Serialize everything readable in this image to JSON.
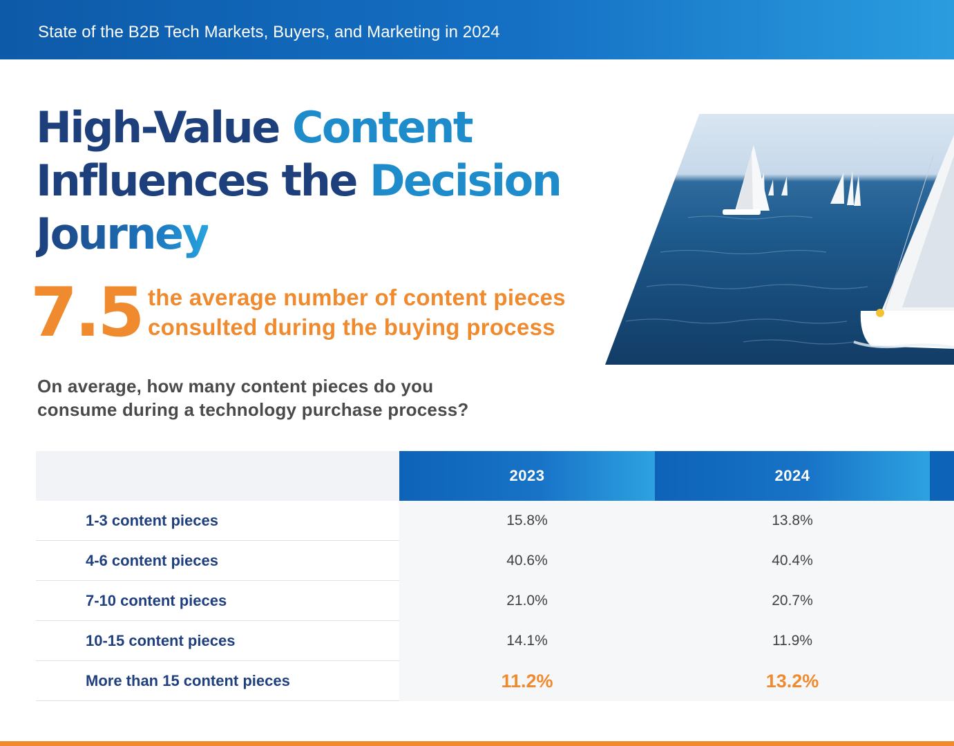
{
  "header": {
    "banner_title": "State of the B2B Tech Markets, Buyers, and Marketing in 2024"
  },
  "headline": {
    "line1_part1": "High-Value ",
    "line1_part2": "Content",
    "line2_part1": "Influences the ",
    "line2_part2": "Decision",
    "line3": "Journey"
  },
  "stat": {
    "value": "7.5",
    "line1": "the average number of content pieces",
    "line2": "consulted during the buying process"
  },
  "question": {
    "line1": "On average, how many content pieces do you",
    "line2": "consume during a technology purchase process?"
  },
  "table": {
    "columns": [
      "2023",
      "2024"
    ],
    "rows": [
      {
        "label": "1-3 content pieces",
        "v2023": "15.8%",
        "v2024": "13.8%"
      },
      {
        "label": "4-6 content pieces",
        "v2023": "40.6%",
        "v2024": "40.4%"
      },
      {
        "label": "7-10 content pieces",
        "v2023": "21.0%",
        "v2024": "20.7%"
      },
      {
        "label": "10-15 content pieces",
        "v2023": "14.1%",
        "v2024": "11.9%"
      },
      {
        "label": "More than 15 content pieces",
        "v2023": "11.2%",
        "v2024": "13.2%"
      }
    ]
  },
  "colors": {
    "navy": "#1d3f7c",
    "blue": "#1e8ccb",
    "orange": "#f08a2e",
    "header_blue": "#1570c4"
  },
  "image": {
    "subject": "sailboats-photo"
  }
}
